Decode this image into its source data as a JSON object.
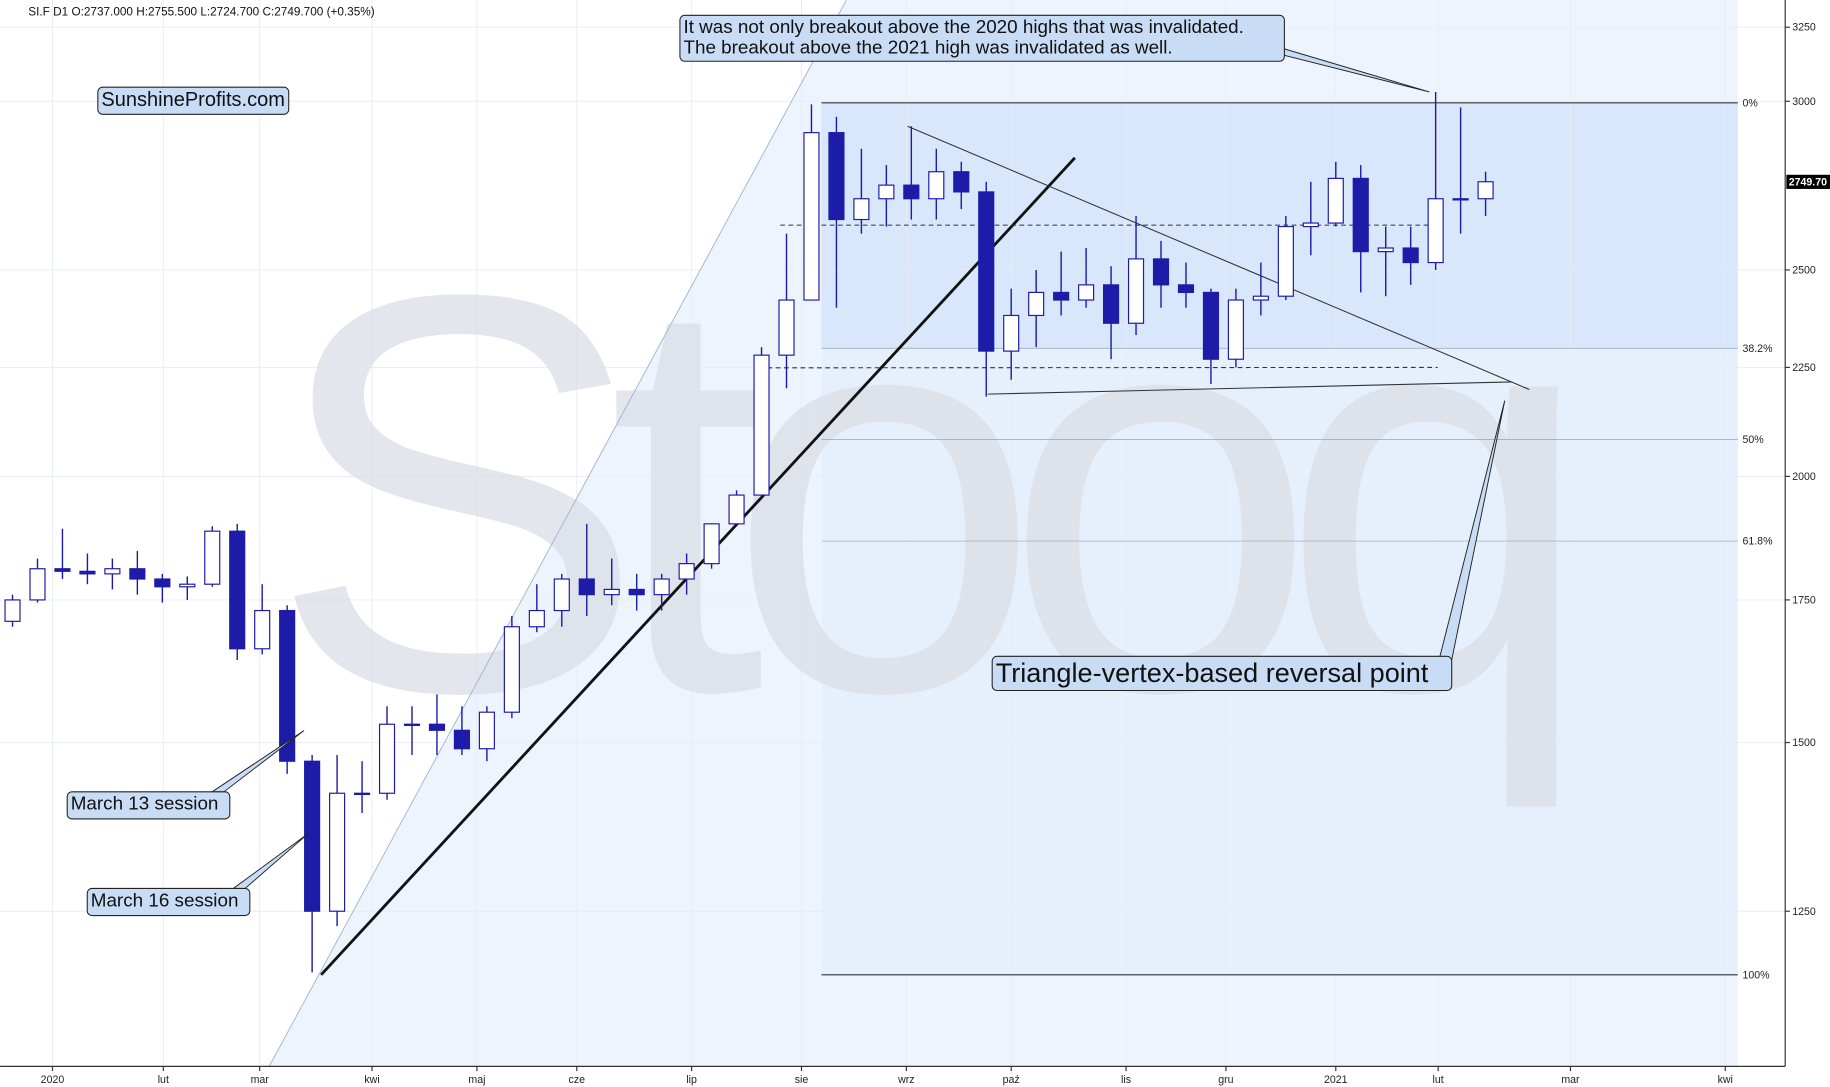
{
  "chart_data": {
    "type": "candlestick",
    "header": "SI.F D1 O:2737.000 H:2755.500 L:2724.700 C:2749.700 (+0.35%)",
    "watermark": "Stooq",
    "x": [
      0,
      1,
      2,
      3,
      4,
      5,
      6,
      7,
      8,
      9,
      10,
      11,
      12,
      13,
      14,
      15,
      16,
      17,
      18,
      19,
      20,
      21,
      22,
      23,
      24,
      25,
      26,
      27,
      28,
      29,
      30,
      31,
      32,
      33,
      34,
      35,
      36,
      37,
      38,
      39,
      40,
      41,
      42,
      43,
      44,
      45,
      46,
      47,
      48,
      49,
      50,
      51,
      52,
      53,
      54,
      55,
      56,
      57,
      58,
      59
    ],
    "open": [
      1710,
      1750,
      1810,
      1805,
      1800,
      1810,
      1790,
      1775,
      1780,
      1885,
      1660,
      1730,
      1470,
      1250,
      1420,
      1420,
      1530,
      1530,
      1520,
      1490,
      1550,
      1700,
      1730,
      1790,
      1760,
      1770,
      1760,
      1790,
      1820,
      1900,
      1960,
      2280,
      2420,
      2900,
      2640,
      2700,
      2740,
      2700,
      2780,
      2720,
      2290,
      2380,
      2440,
      2420,
      2460,
      2360,
      2530,
      2460,
      2440,
      2270,
      2420,
      2430,
      2620,
      2630,
      2760,
      2550,
      2560,
      2520,
      2700,
      2700
    ],
    "high": [
      1760,
      1830,
      1890,
      1840,
      1830,
      1845,
      1800,
      1795,
      1895,
      1900,
      1780,
      1740,
      1480,
      1480,
      1470,
      1560,
      1560,
      1580,
      1560,
      1560,
      1720,
      1780,
      1800,
      1900,
      1830,
      1800,
      1800,
      1840,
      1900,
      1970,
      2300,
      2600,
      2990,
      2950,
      2850,
      2800,
      2920,
      2850,
      2810,
      2750,
      2450,
      2500,
      2550,
      2560,
      2510,
      2650,
      2580,
      2520,
      2450,
      2450,
      2520,
      2650,
      2750,
      2810,
      2800,
      2620,
      2620,
      3030,
      2980,
      2780
    ],
    "low": [
      1700,
      1745,
      1790,
      1780,
      1770,
      1760,
      1745,
      1750,
      1775,
      1640,
      1650,
      1450,
      1170,
      1230,
      1390,
      1410,
      1480,
      1480,
      1480,
      1470,
      1540,
      1690,
      1700,
      1720,
      1740,
      1730,
      1730,
      1760,
      1810,
      1900,
      1960,
      2200,
      2420,
      2400,
      2600,
      2620,
      2640,
      2640,
      2670,
      2180,
      2220,
      2300,
      2380,
      2400,
      2270,
      2330,
      2400,
      2400,
      2210,
      2250,
      2380,
      2420,
      2540,
      2620,
      2440,
      2430,
      2460,
      2500,
      2600,
      2650
    ],
    "close": [
      1750,
      1810,
      1805,
      1800,
      1810,
      1790,
      1775,
      1780,
      1885,
      1660,
      1730,
      1470,
      1250,
      1420,
      1420,
      1530,
      1530,
      1520,
      1490,
      1550,
      1700,
      1730,
      1790,
      1760,
      1770,
      1760,
      1790,
      1820,
      1900,
      1960,
      2280,
      2420,
      2900,
      2640,
      2700,
      2740,
      2700,
      2780,
      2720,
      2290,
      2380,
      2440,
      2420,
      2460,
      2360,
      2530,
      2460,
      2440,
      2270,
      2420,
      2430,
      2620,
      2630,
      2760,
      2550,
      2560,
      2520,
      2700,
      2700,
      2750
    ],
    "up_color": "#ffffff",
    "down_color": "#1c1ca8",
    "xlim": [
      -0.5,
      71
    ],
    "ylim": [
      1057,
      3347
    ],
    "log_y": true,
    "grid": true,
    "xticks": [
      {
        "value": 1.6,
        "label": "2020"
      },
      {
        "value": 6.04,
        "label": "lut"
      },
      {
        "value": 9.9,
        "label": "mar"
      },
      {
        "value": 14.4,
        "label": "kwi"
      },
      {
        "value": 18.6,
        "label": "maj"
      },
      {
        "value": 22.6,
        "label": "cze"
      },
      {
        "value": 27.2,
        "label": "lip"
      },
      {
        "value": 31.6,
        "label": "sie"
      },
      {
        "value": 35.8,
        "label": "wrz"
      },
      {
        "value": 40,
        "label": "paź"
      },
      {
        "value": 44.6,
        "label": "lis"
      },
      {
        "value": 48.6,
        "label": "gru"
      },
      {
        "value": 53,
        "label": "2021"
      },
      {
        "value": 57.1,
        "label": "lut"
      },
      {
        "value": 62.4,
        "label": "mar"
      },
      {
        "value": 68.6,
        "label": "kwi"
      }
    ],
    "yticks": [
      1250,
      1500,
      1750,
      2000,
      2250,
      2500,
      3000,
      3250
    ],
    "last_price": {
      "value": 2749.7,
      "label": "2749.70"
    },
    "fib_x": [
      32.4,
      69.1
    ],
    "fib_levels": [
      {
        "value": 2995,
        "label": "0%"
      },
      {
        "value": 2297,
        "label": "38.2%"
      },
      {
        "value": 2081,
        "label": "50%"
      },
      {
        "value": 1865,
        "label": "61.8%"
      },
      {
        "value": 1167,
        "label": "100%"
      }
    ],
    "lines": [
      {
        "x": [
          10.28,
          33.4
        ],
        "y": [
          1057,
          3347
        ],
        "style": "channel"
      },
      {
        "x": [
          12.36,
          42.55
        ],
        "y": [
          1167,
          2822
        ],
        "style": "bold"
      },
      {
        "x": [
          35.85,
          60.75
        ],
        "y": [
          2920,
          2197
        ],
        "style": "thin"
      },
      {
        "x": [
          39.06,
          60.05
        ],
        "y": [
          2186,
          2215
        ],
        "style": "thin"
      },
      {
        "x": [
          30.75,
          57.08
        ],
        "y": [
          2624,
          2624
        ],
        "style": "dashed"
      },
      {
        "x": [
          30.24,
          57.08
        ],
        "y": [
          2249,
          2250
        ],
        "style": "dashed"
      }
    ],
    "annotations": [
      {
        "text": [
          "It was not only breakout above the 2020 highs that was invalidated.",
          "The breakout above the 2021 high was invalidated as well."
        ]
      },
      {
        "text": [
          "SunshineProfits.com"
        ]
      },
      {
        "text": [
          "Triangle-vertex-based reversal point"
        ]
      },
      {
        "text": [
          "March 13 session"
        ]
      },
      {
        "text": [
          "March 16 session"
        ]
      }
    ]
  }
}
